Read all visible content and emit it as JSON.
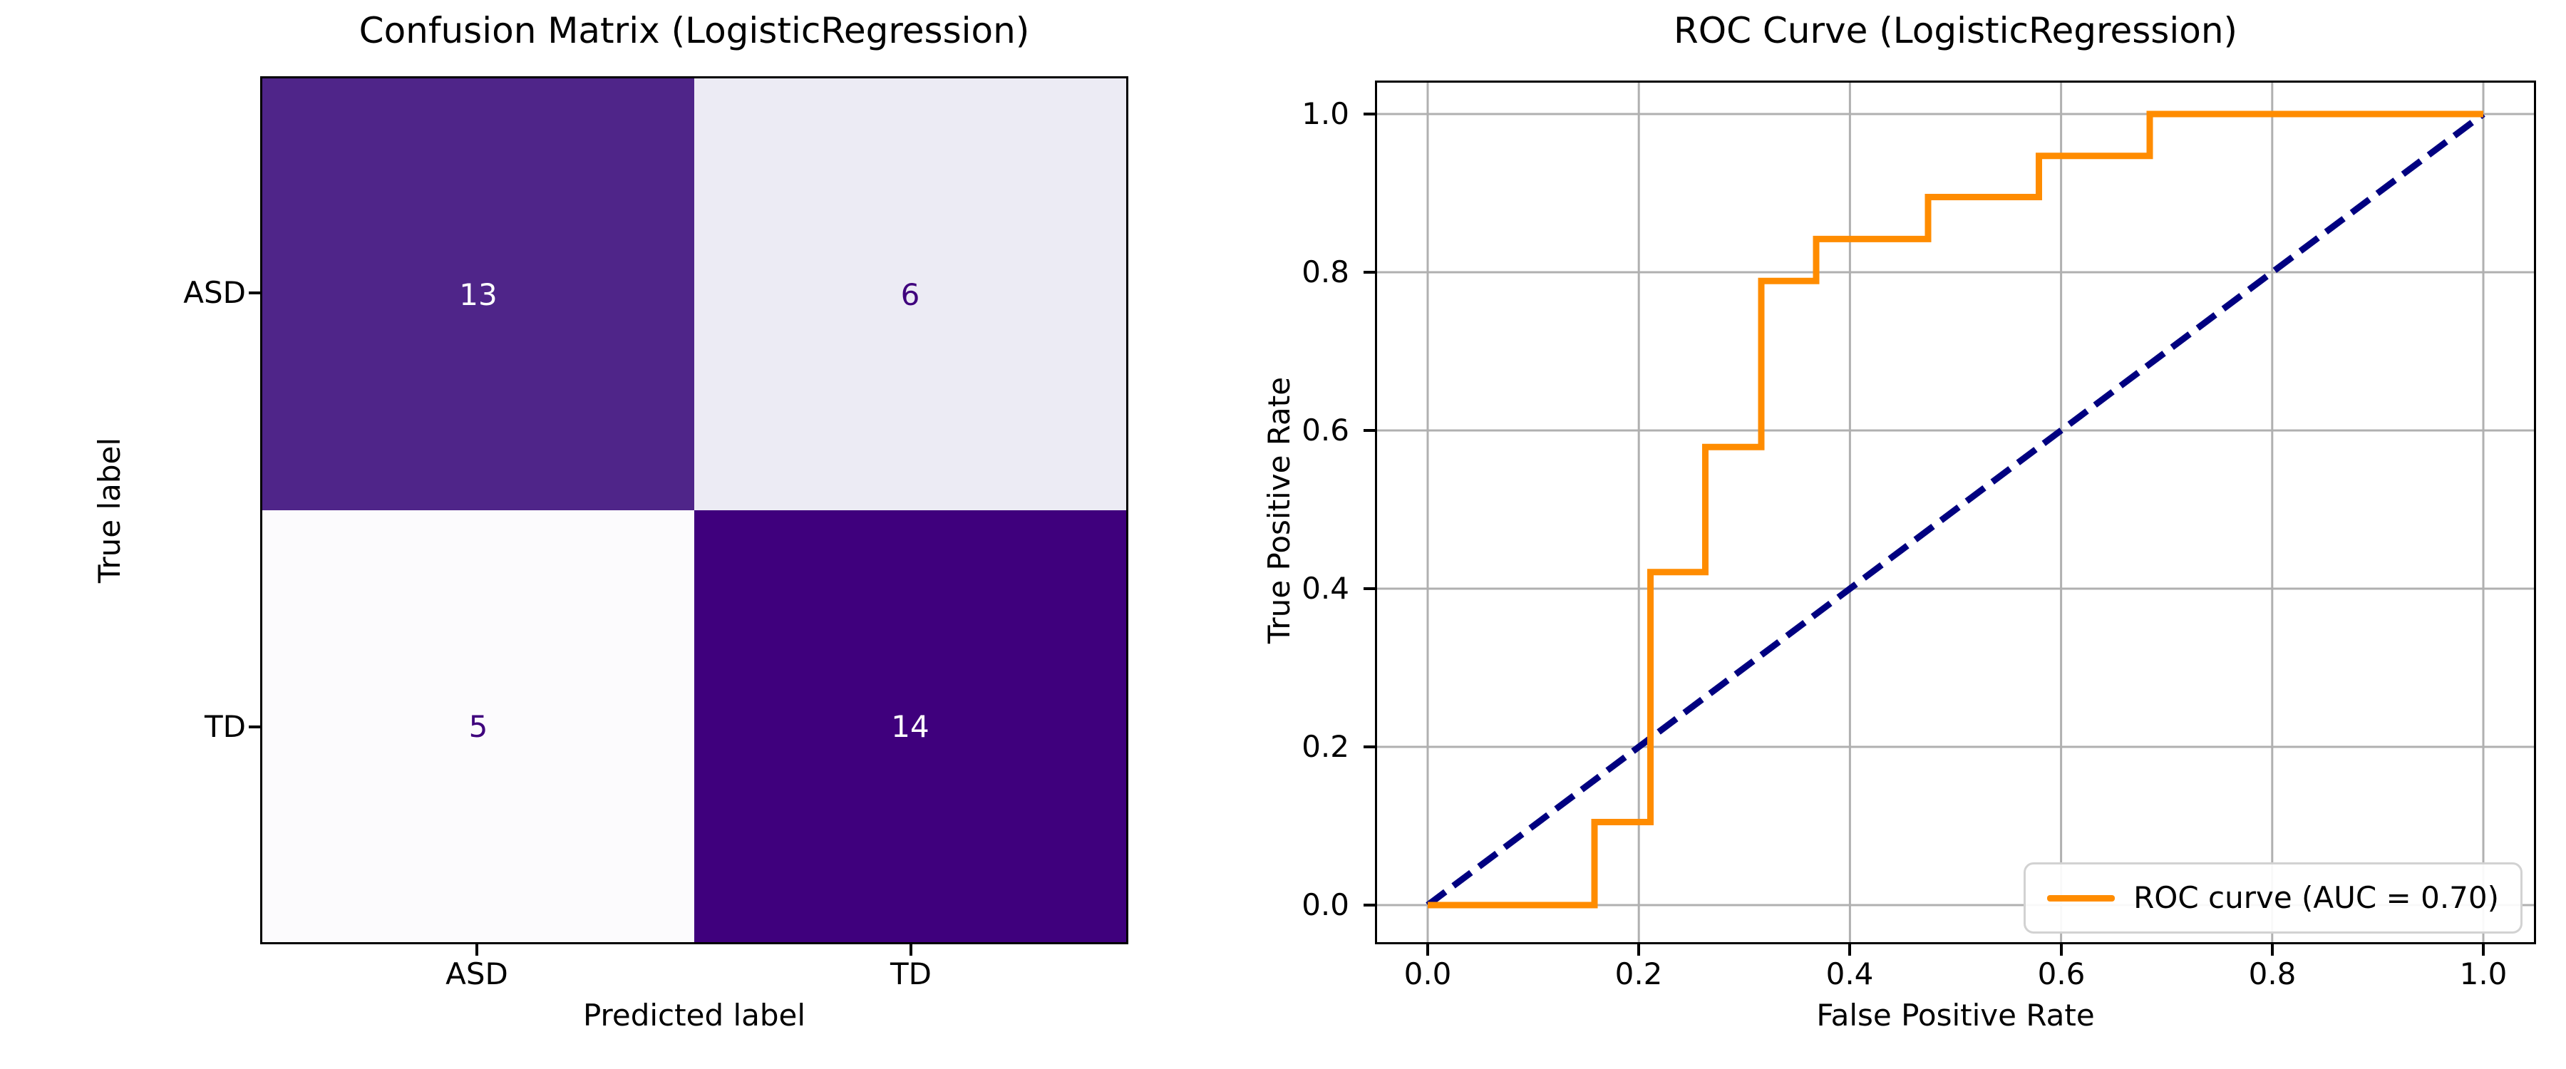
{
  "figure": {
    "background": "#ffffff",
    "spine_color": "#000000",
    "text_color": "#000000"
  },
  "chart_data": [
    {
      "type": "heatmap",
      "title": "Confusion Matrix (LogisticRegression)",
      "xlabel": "Predicted label",
      "ylabel": "True label",
      "x_categories": [
        "ASD",
        "TD"
      ],
      "y_categories": [
        "ASD",
        "TD"
      ],
      "matrix": [
        [
          13,
          6
        ],
        [
          5,
          14
        ]
      ],
      "colormap": "Purples",
      "cell_colors": [
        [
          "#4f2589",
          "#ecebf4"
        ],
        [
          "#fcfbfd",
          "#3f007d"
        ]
      ],
      "cell_text_colors": [
        [
          "#ffffff",
          "#3f007d"
        ],
        [
          "#3f007d",
          "#ffffff"
        ]
      ]
    },
    {
      "type": "line",
      "title": "ROC Curve (LogisticRegression)",
      "xlabel": "False Positive Rate",
      "ylabel": "True Positive Rate",
      "xlim": [
        0.0,
        1.0
      ],
      "ylim": [
        0.0,
        1.0
      ],
      "x_ticks": [
        "0.0",
        "0.2",
        "0.4",
        "0.6",
        "0.8",
        "1.0"
      ],
      "y_ticks": [
        "0.0",
        "0.2",
        "0.4",
        "0.6",
        "0.8",
        "1.0"
      ],
      "grid": true,
      "grid_color": "#b0b0b0",
      "auc": "0.70",
      "series": [
        {
          "name": "chance-diagonal",
          "color": "#000080",
          "style": "dashed",
          "x": [
            0.0,
            1.0
          ],
          "y": [
            0.0,
            1.0
          ]
        },
        {
          "name": "ROC curve (AUC = 0.70)",
          "color": "#ff8c00",
          "style": "solid",
          "x": [
            0.0,
            0.158,
            0.158,
            0.211,
            0.211,
            0.263,
            0.263,
            0.316,
            0.316,
            0.368,
            0.368,
            0.474,
            0.474,
            0.579,
            0.579,
            0.684,
            0.684,
            1.0
          ],
          "y": [
            0.0,
            0.0,
            0.105,
            0.105,
            0.421,
            0.421,
            0.579,
            0.579,
            0.789,
            0.789,
            0.842,
            0.842,
            0.895,
            0.895,
            0.947,
            0.947,
            1.0,
            1.0
          ]
        }
      ],
      "legend": {
        "position": "lower right",
        "entries": [
          {
            "label": "ROC curve (AUC = 0.70)",
            "color": "#ff8c00"
          }
        ]
      }
    }
  ]
}
